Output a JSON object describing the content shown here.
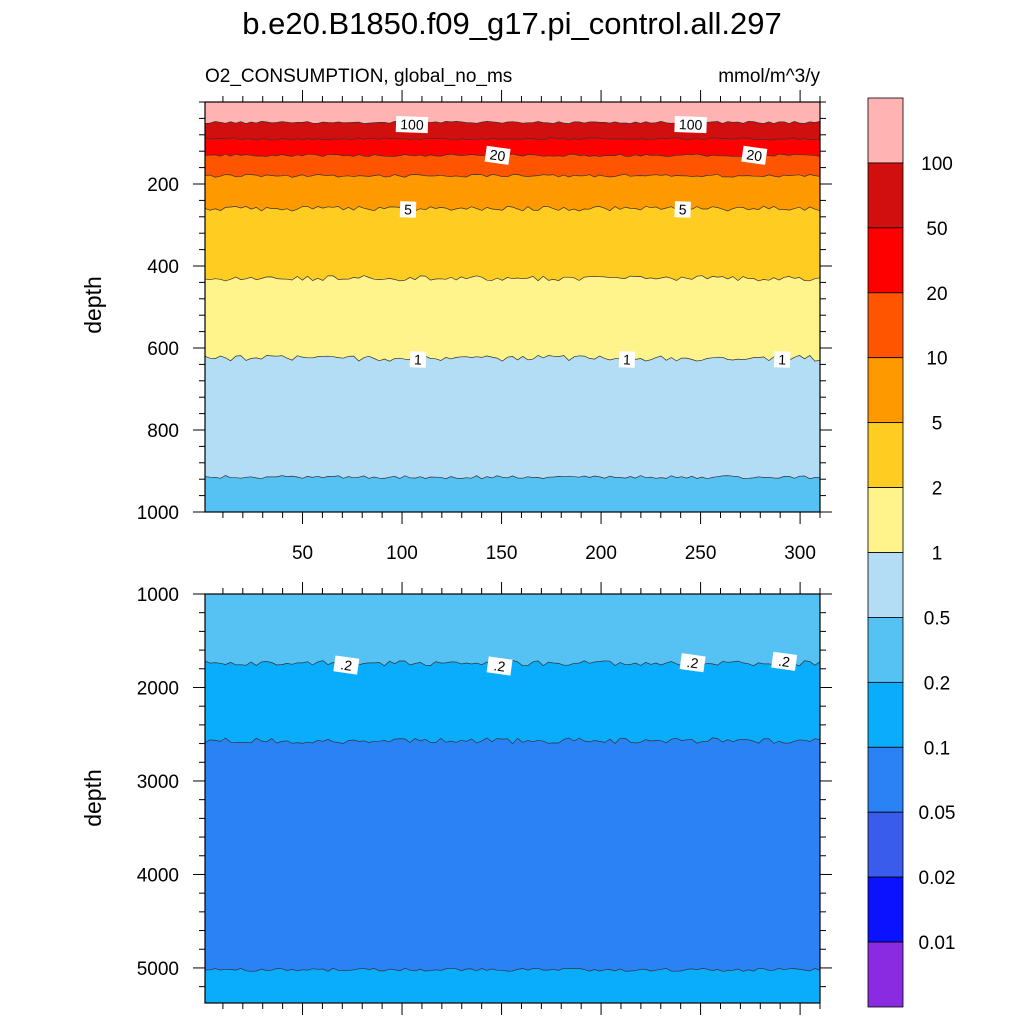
{
  "title": "b.e20.B1850.f09_g17.pi_control.all.297",
  "subtitle_left": "O2_CONSUMPTION, global_no_ms",
  "subtitle_right": "mmol/m^3/y",
  "chart_data": [
    {
      "type": "heatmap",
      "panel": "upper",
      "xlabel": "",
      "ylabel": "depth",
      "xlim": [
        1,
        310
      ],
      "ylim": [
        1000,
        0
      ],
      "xticks": [
        50,
        100,
        150,
        200,
        250,
        300
      ],
      "yticks": [
        200,
        400,
        600,
        800,
        1000
      ],
      "bands": [
        {
          "top": 0,
          "bottom": 50,
          "color": "#ffb3b3"
        },
        {
          "top": 50,
          "bottom": 90,
          "color": "#d10f0f"
        },
        {
          "top": 90,
          "bottom": 130,
          "color": "#ff0000"
        },
        {
          "top": 130,
          "bottom": 180,
          "color": "#ff5500"
        },
        {
          "top": 180,
          "bottom": 260,
          "color": "#ff9900"
        },
        {
          "top": 260,
          "bottom": 430,
          "color": "#ffcc22"
        },
        {
          "top": 430,
          "bottom": 625,
          "color": "#fff38c"
        },
        {
          "top": 625,
          "bottom": 915,
          "color": "#b3ddf4"
        },
        {
          "top": 915,
          "bottom": 1000,
          "color": "#56c1f3"
        }
      ],
      "contour_labels": [
        {
          "text": "100",
          "x": 105,
          "y": 55
        },
        {
          "text": "100",
          "x": 245,
          "y": 55
        },
        {
          "text": "20",
          "x": 148,
          "y": 130
        },
        {
          "text": "20",
          "x": 277,
          "y": 130
        },
        {
          "text": "5",
          "x": 103,
          "y": 262
        },
        {
          "text": "5",
          "x": 241,
          "y": 262
        },
        {
          "text": "1",
          "x": 108,
          "y": 628
        },
        {
          "text": "1",
          "x": 213,
          "y": 628
        },
        {
          "text": "1",
          "x": 291,
          "y": 628
        }
      ]
    },
    {
      "type": "heatmap",
      "panel": "lower",
      "xlabel": "",
      "ylabel": "depth",
      "xlim": [
        1,
        310
      ],
      "ylim": [
        5375,
        1000
      ],
      "yticks": [
        1000,
        2000,
        3000,
        4000,
        5000
      ],
      "bands": [
        {
          "top": 1000,
          "bottom": 1740,
          "color": "#56c1f3"
        },
        {
          "top": 1740,
          "bottom": 2570,
          "color": "#0aacfc"
        },
        {
          "top": 2570,
          "bottom": 5020,
          "color": "#2a82f5"
        },
        {
          "top": 5020,
          "bottom": 5375,
          "color": "#0aacfc"
        }
      ],
      "contour_labels": [
        {
          "text": ".2",
          "x": 72,
          "y": 1760
        },
        {
          "text": ".2",
          "x": 149,
          "y": 1770
        },
        {
          "text": ".2",
          "x": 246,
          "y": 1735
        },
        {
          "text": ".2",
          "x": 292,
          "y": 1720
        }
      ]
    }
  ],
  "colorbar": {
    "labels": [
      "100",
      "50",
      "20",
      "10",
      "5",
      "2",
      "1",
      "0.5",
      "0.2",
      "0.1",
      "0.05",
      "0.02",
      "0.01"
    ],
    "colors": [
      "#ffb3b3",
      "#d10f0f",
      "#ff0000",
      "#ff5500",
      "#ff9900",
      "#ffcc22",
      "#fff38c",
      "#b3ddf4",
      "#56c1f3",
      "#0aacfc",
      "#2a82f5",
      "#3a5cec",
      "#0b12ff",
      "#8a2be2"
    ]
  }
}
